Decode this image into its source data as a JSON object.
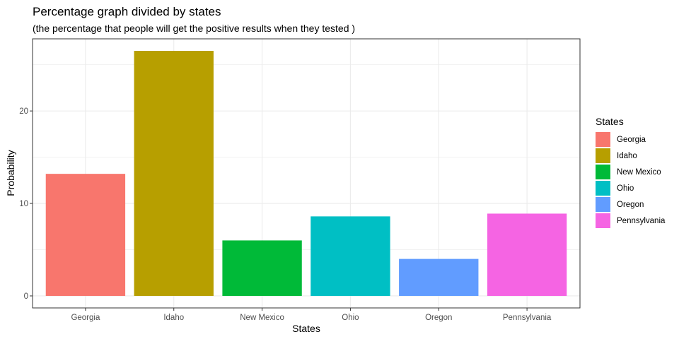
{
  "title": "Percentage graph divided by states",
  "subtitle": "(the percentage that people will get the positive results when they tested )",
  "chart_data": {
    "type": "bar",
    "title": "Percentage graph divided by states",
    "subtitle": "(the percentage that people will get the positive results when they tested )",
    "xlabel": "States",
    "ylabel": "Probability",
    "categories": [
      "Georgia",
      "Idaho",
      "New Mexico",
      "Ohio",
      "Oregon",
      "Pennsylvania"
    ],
    "values": [
      13.2,
      26.5,
      6.0,
      8.6,
      4.0,
      8.9
    ],
    "colors": [
      "#F8766D",
      "#B79F00",
      "#00BA38",
      "#00BFC4",
      "#619CFF",
      "#F564E3"
    ],
    "yticks": [
      0,
      10,
      20
    ],
    "ylim": [
      -1.3,
      27.8
    ],
    "grid": true,
    "legend": {
      "title": "States",
      "position": "right",
      "labels": [
        "Georgia",
        "Idaho",
        "New Mexico",
        "Ohio",
        "Oregon",
        "Pennsylvania"
      ]
    }
  }
}
